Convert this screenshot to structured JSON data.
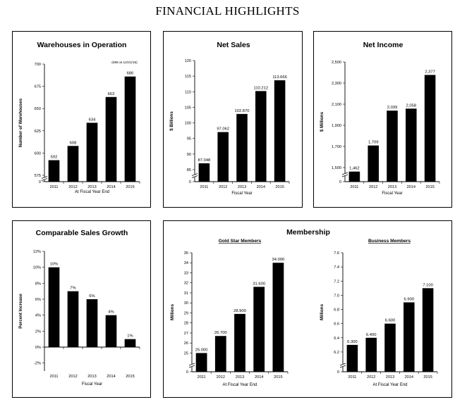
{
  "page": {
    "title": "FINANCIAL HIGHLIGHTS"
  },
  "membership_title": "Membership",
  "chart_data": [
    {
      "id": "warehouses",
      "type": "bar",
      "title": "Warehouses in Operation",
      "ylabel": "Number of Warehouses",
      "xlabel": "At Fiscal Year End",
      "categories": [
        "2011",
        "2012",
        "2013",
        "2014",
        "2015"
      ],
      "values": [
        592,
        608,
        634,
        663,
        686
      ],
      "value_labels": [
        "592",
        "608",
        "634",
        "663",
        "686"
      ],
      "annotation": "(698 at 12/31/15)",
      "ylim": [
        575,
        700
      ],
      "yticks": [
        575,
        600,
        625,
        650,
        675,
        700
      ],
      "zero_tick": "0",
      "axis_break": true
    },
    {
      "id": "net-sales",
      "type": "bar",
      "title": "Net Sales",
      "ylabel": "$ Billions",
      "xlabel": "Fiscal Year",
      "categories": [
        "2011",
        "2012",
        "2013",
        "2014",
        "2015"
      ],
      "values": [
        87.048,
        97.062,
        102.87,
        110.212,
        113.666
      ],
      "value_labels": [
        "87.048",
        "97.062",
        "102.870",
        "110.212",
        "113.666"
      ],
      "ylim": [
        85,
        120
      ],
      "yticks": [
        85,
        90,
        95,
        100,
        105,
        110,
        115,
        120
      ],
      "zero_tick": "0",
      "axis_break": true
    },
    {
      "id": "net-income",
      "type": "bar",
      "title": "Net Income",
      "ylabel": "$ Millions",
      "xlabel": "Fiscal Year",
      "categories": [
        "2011",
        "2012",
        "2013",
        "2014",
        "2015"
      ],
      "values": [
        1462,
        1709,
        2039,
        2058,
        2377
      ],
      "value_labels": [
        "1,462",
        "1,709",
        "2,039",
        "2,058",
        "2,377"
      ],
      "ylim": [
        1500,
        2500
      ],
      "yticks": [
        1500,
        1700,
        1900,
        2100,
        2300,
        2500
      ],
      "ytick_labels": [
        "1,500",
        "1,700",
        "1,900",
        "2,100",
        "2,300",
        "2,500"
      ],
      "zero_tick": "0",
      "axis_break": true
    },
    {
      "id": "comparable-sales",
      "type": "bar",
      "title": "Comparable Sales Growth",
      "ylabel": "Percent Increase",
      "xlabel": "Fiscal Year",
      "categories": [
        "2011",
        "2012",
        "2013",
        "2014",
        "2015"
      ],
      "values": [
        10,
        7,
        6,
        4,
        1
      ],
      "value_labels": [
        "10%",
        "7%",
        "6%",
        "4%",
        "1%"
      ],
      "ylim": [
        -3,
        12
      ],
      "yticks": [
        -2,
        0,
        2,
        4,
        6,
        8,
        10,
        12
      ],
      "ytick_labels": [
        "-2%",
        "0%",
        "2%",
        "4%",
        "6%",
        "8%",
        "10%",
        "12%"
      ],
      "axis_break": false
    },
    {
      "id": "gold-star",
      "type": "bar",
      "title": "Gold Star Members",
      "ylabel": "Millions",
      "xlabel": "At Fiscal Year End",
      "categories": [
        "2011",
        "2012",
        "2013",
        "2014",
        "2015"
      ],
      "values": [
        25.0,
        26.7,
        28.9,
        31.6,
        34.0
      ],
      "value_labels": [
        "25.000",
        "26.700",
        "28.900",
        "31.600",
        "34.000"
      ],
      "ylim": [
        24.4,
        35
      ],
      "yticks": [
        25,
        26,
        27,
        28,
        29,
        30,
        31,
        32,
        33,
        34,
        35
      ],
      "zero_tick": "0",
      "axis_break": true
    },
    {
      "id": "business",
      "type": "bar",
      "title": "Business Members",
      "ylabel": "Millions",
      "xlabel": "At Fiscal Year End",
      "categories": [
        "2011",
        "2012",
        "2013",
        "2014",
        "2015"
      ],
      "values": [
        6.3,
        6.4,
        6.6,
        6.9,
        7.1
      ],
      "value_labels": [
        "6.300",
        "6.400",
        "6.600",
        "6.900",
        "7.100"
      ],
      "ylim": [
        6.1,
        7.6
      ],
      "yticks": [
        6.2,
        6.4,
        6.6,
        6.8,
        7.0,
        7.2,
        7.4,
        7.6
      ],
      "ytick_labels": [
        "6.2",
        "6.4",
        "6.6",
        "6.8",
        "7.0",
        "7.2",
        "7.4",
        "7.6"
      ],
      "zero_tick": "0",
      "axis_break": true
    }
  ]
}
